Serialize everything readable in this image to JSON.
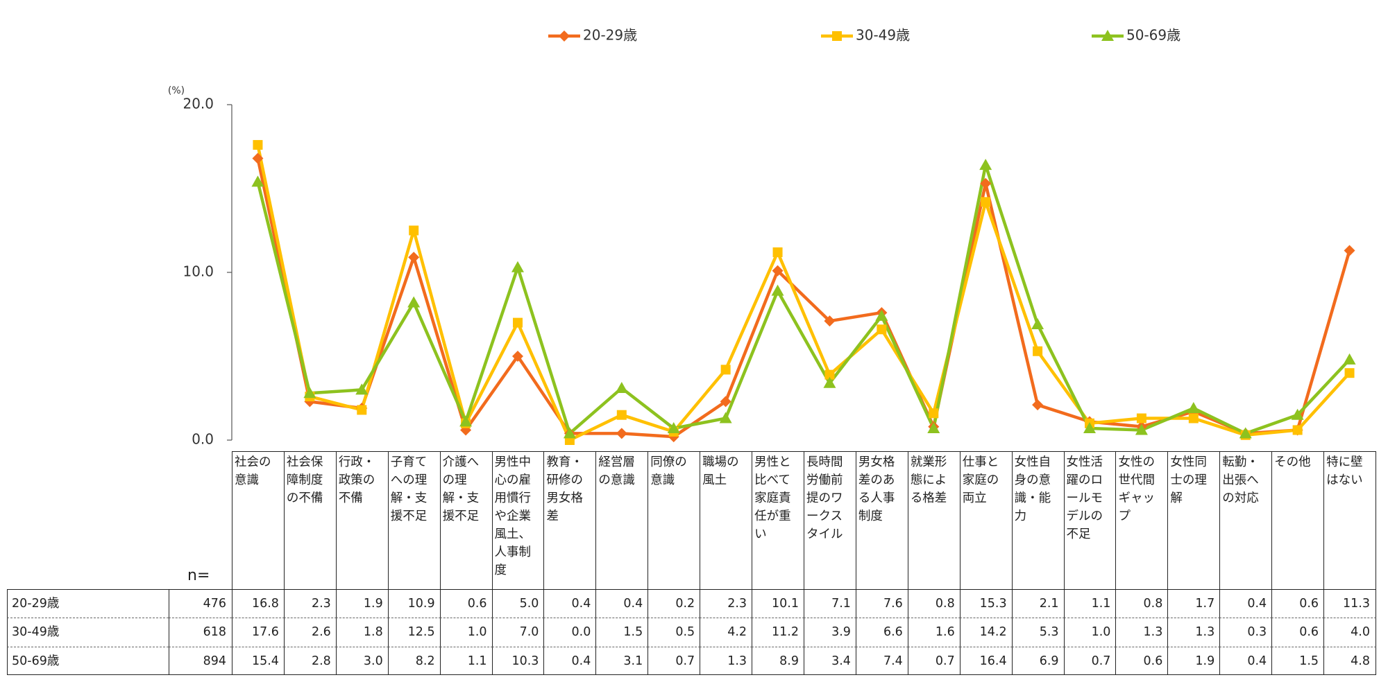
{
  "chart_data": {
    "type": "line",
    "y_label": "(%)",
    "n_label": "n=",
    "categories": [
      "社会の意識",
      "社会保障制度の不備",
      "行政・政策の不備",
      "子育てへの理解・支援不足",
      "介護への理解・支援不足",
      "男性中心の雇用慣行や企業風土、人事制度",
      "教育・研修の男女格差",
      "経営層の意識",
      "同僚の意識",
      "職場の風土",
      "男性と比べて家庭責任が重い",
      "長時間労働前提のワークスタイル",
      "男女格差のある人事制度",
      "就業形態による格差",
      "仕事と家庭の両立",
      "女性自身の意識・能力",
      "女性活躍のロールモデルの不足",
      "女性の世代間ギャップ",
      "女性同士の理解",
      "転勤・出張への対応",
      "その他",
      "特に壁はない"
    ],
    "series": [
      {
        "name": "20-29歳",
        "color": "#f26b1d",
        "marker": "diamond",
        "n": 476,
        "values": [
          16.8,
          2.3,
          1.9,
          10.9,
          0.6,
          5.0,
          0.4,
          0.4,
          0.2,
          2.3,
          10.1,
          7.1,
          7.6,
          0.8,
          15.3,
          2.1,
          1.1,
          0.8,
          1.7,
          0.4,
          0.6,
          11.3
        ],
        "value_labels": [
          "16.8",
          "2.3",
          "1.9",
          "10.9",
          "0.6",
          "5.0",
          "0.4",
          "0.4",
          "0.2",
          "2.3",
          "10.1",
          "7.1",
          "7.6",
          "0.8",
          "15.3",
          "2.1",
          "1.1",
          "0.8",
          "1.7",
          "0.4",
          "0.6",
          "11.3"
        ]
      },
      {
        "name": "30-49歳",
        "color": "#ffc000",
        "marker": "square",
        "n": 618,
        "values": [
          17.6,
          2.6,
          1.8,
          12.5,
          1.0,
          7.0,
          0.0,
          1.5,
          0.5,
          4.2,
          11.2,
          3.9,
          6.6,
          1.6,
          14.2,
          5.3,
          1.0,
          1.3,
          1.3,
          0.3,
          0.6,
          4.0
        ],
        "value_labels": [
          "17.6",
          "2.6",
          "1.8",
          "12.5",
          "1.0",
          "7.0",
          "0.0",
          "1.5",
          "0.5",
          "4.2",
          "11.2",
          "3.9",
          "6.6",
          "1.6",
          "14.2",
          "5.3",
          "1.0",
          "1.3",
          "1.3",
          "0.3",
          "0.6",
          "4.0"
        ]
      },
      {
        "name": "50-69歳",
        "color": "#8dc21f",
        "marker": "triangle",
        "n": 894,
        "values": [
          15.4,
          2.8,
          3.0,
          8.2,
          1.1,
          10.3,
          0.4,
          3.1,
          0.7,
          1.3,
          8.9,
          3.4,
          7.4,
          0.7,
          16.4,
          6.9,
          0.7,
          0.6,
          1.9,
          0.4,
          1.5,
          4.8
        ],
        "value_labels": [
          "15.4",
          "2.8",
          "3.0",
          "8.2",
          "1.1",
          "10.3",
          "0.4",
          "3.1",
          "0.7",
          "1.3",
          "8.9",
          "3.4",
          "7.4",
          "0.7",
          "16.4",
          "6.9",
          "0.7",
          "0.6",
          "1.9",
          "0.4",
          "1.5",
          "4.8"
        ]
      }
    ],
    "ylim": [
      0,
      20
    ],
    "yticks": [
      {
        "value": 0,
        "label": "0.0"
      },
      {
        "value": 10,
        "label": "10.0"
      },
      {
        "value": 20,
        "label": "20.0"
      }
    ],
    "legend": "top"
  }
}
